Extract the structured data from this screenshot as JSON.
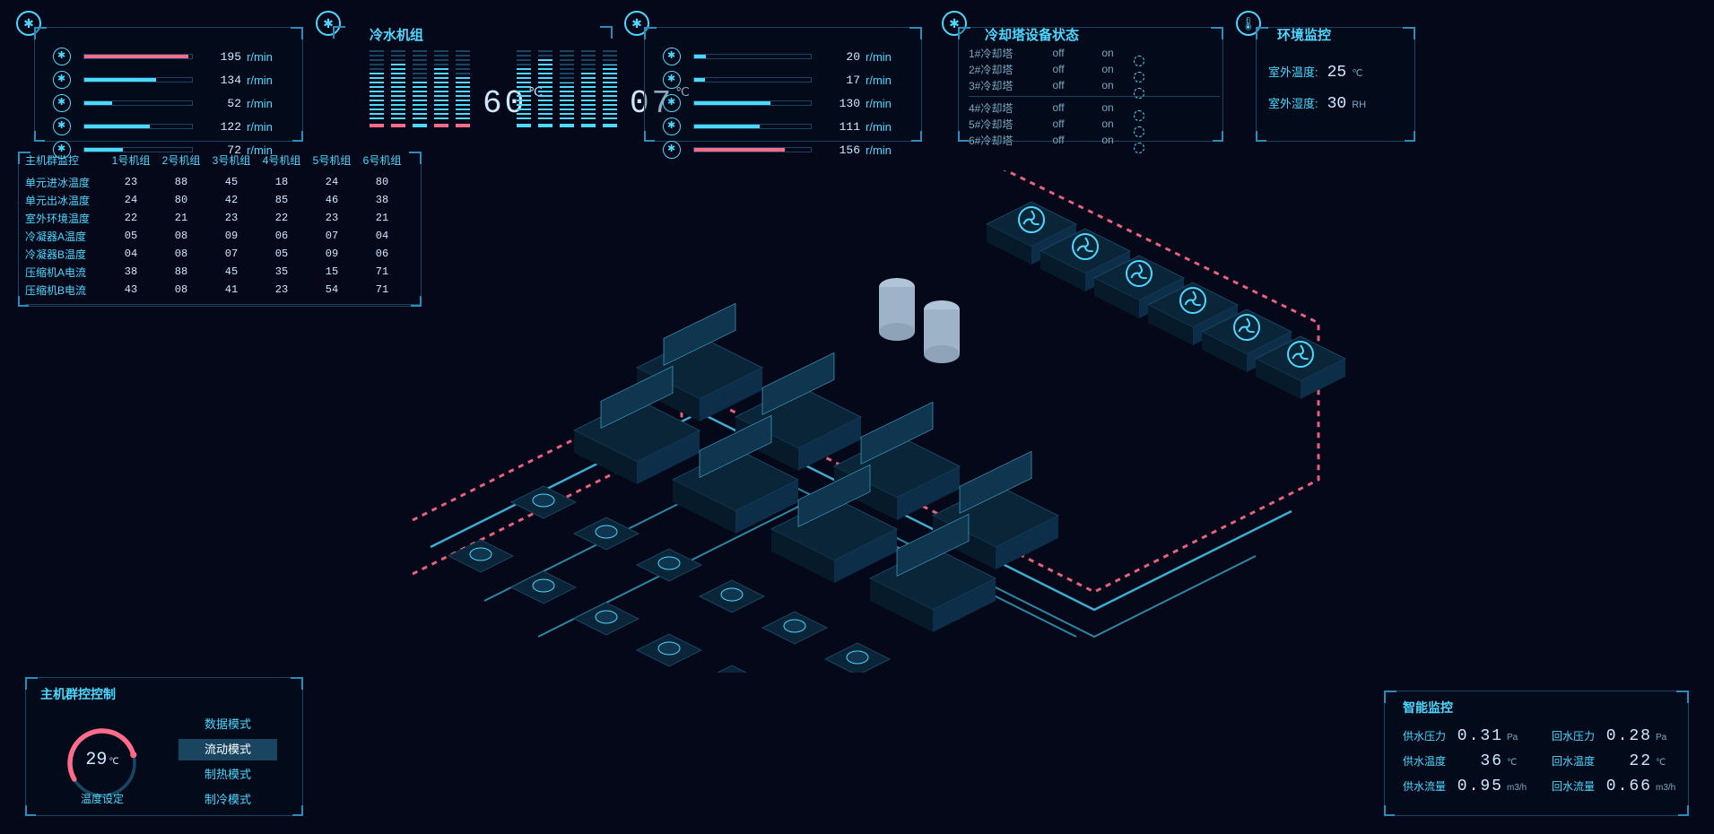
{
  "colors": {
    "bg": "#040818",
    "line": "#1a4560",
    "accent": "#4dd8ff",
    "accent2": "#2a8bbd",
    "text": "#cfe8ff",
    "muted": "#7ba8c0",
    "red": "#ff6b8a"
  },
  "top_left_fans": {
    "unit_label": "r/min",
    "max": 200,
    "rows": [
      {
        "value": 195,
        "pct": 97,
        "color": "red"
      },
      {
        "value": 134,
        "pct": 67,
        "color": "blue"
      },
      {
        "value": 52,
        "pct": 26,
        "color": "blue"
      },
      {
        "value": 122,
        "pct": 61,
        "color": "blue"
      },
      {
        "value": 72,
        "pct": 36,
        "color": "blue"
      }
    ]
  },
  "chiller": {
    "title": "冷水机组",
    "group_a": {
      "temp": "60",
      "temp_unit": "℃",
      "bars": [
        {
          "fill_pct": 70,
          "fill_color": "#4dd8ff",
          "base_color": "#ff6b8a"
        },
        {
          "fill_pct": 85,
          "fill_color": "#4dd8ff",
          "base_color": "#ff6b8a"
        },
        {
          "fill_pct": 60,
          "fill_color": "#4dd8ff",
          "base_color": "#4dd8ff"
        },
        {
          "fill_pct": 78,
          "fill_color": "#4dd8ff",
          "base_color": "#ff6b8a"
        },
        {
          "fill_pct": 65,
          "fill_color": "#4dd8ff",
          "base_color": "#ff6b8a"
        }
      ]
    },
    "group_b": {
      "temp": "07",
      "temp_unit": "℃",
      "bars": [
        {
          "fill_pct": 75,
          "fill_color": "#4dd8ff",
          "base_color": "#4dd8ff"
        },
        {
          "fill_pct": 88,
          "fill_color": "#4dd8ff",
          "base_color": "#4dd8ff"
        },
        {
          "fill_pct": 55,
          "fill_color": "#4dd8ff",
          "base_color": "#4dd8ff"
        },
        {
          "fill_pct": 70,
          "fill_color": "#4dd8ff",
          "base_color": "#4dd8ff"
        },
        {
          "fill_pct": 80,
          "fill_color": "#4dd8ff",
          "base_color": "#4dd8ff"
        }
      ]
    }
  },
  "top_right_fans": {
    "unit_label": "r/min",
    "max": 200,
    "rows": [
      {
        "value": 20,
        "pct": 10,
        "color": "blue"
      },
      {
        "value": 17,
        "pct": 9,
        "color": "blue"
      },
      {
        "value": 130,
        "pct": 65,
        "color": "blue"
      },
      {
        "value": 111,
        "pct": 56,
        "color": "blue"
      },
      {
        "value": 156,
        "pct": 78,
        "color": "red"
      }
    ]
  },
  "tower": {
    "title": "冷却塔设备状态",
    "rows": [
      {
        "name": "1#冷却塔",
        "state_off": "off",
        "state_on": "on"
      },
      {
        "name": "2#冷却塔",
        "state_off": "off",
        "state_on": "on"
      },
      {
        "name": "3#冷却塔",
        "state_off": "off",
        "state_on": "on"
      },
      {
        "name": "4#冷却塔",
        "state_off": "off",
        "state_on": "on"
      },
      {
        "name": "5#冷却塔",
        "state_off": "off",
        "state_on": "on"
      },
      {
        "name": "6#冷却塔",
        "state_off": "off",
        "state_on": "on"
      }
    ]
  },
  "env": {
    "title": "环境监控",
    "rows": [
      {
        "label": "室外温度:",
        "value": "25",
        "unit": "℃"
      },
      {
        "label": "室外湿度:",
        "value": "30",
        "unit": "RH"
      }
    ]
  },
  "host_table": {
    "header0": "主机群监控",
    "headers": [
      "1号机组",
      "2号机组",
      "3号机组",
      "4号机组",
      "5号机组",
      "6号机组"
    ],
    "rows": [
      {
        "label": "单元进冰温度",
        "cells": [
          "23",
          "88",
          "45",
          "18",
          "24",
          "80"
        ]
      },
      {
        "label": "单元出冰温度",
        "cells": [
          "24",
          "80",
          "42",
          "85",
          "46",
          "38"
        ]
      },
      {
        "label": "室外环境温度",
        "cells": [
          "22",
          "21",
          "23",
          "22",
          "23",
          "21"
        ]
      },
      {
        "label": "冷凝器A温度",
        "cells": [
          "05",
          "08",
          "09",
          "06",
          "07",
          "04"
        ]
      },
      {
        "label": "冷凝器B温度",
        "cells": [
          "04",
          "08",
          "07",
          "05",
          "09",
          "06"
        ]
      },
      {
        "label": "压缩机A电流",
        "cells": [
          "38",
          "88",
          "45",
          "35",
          "15",
          "71"
        ]
      },
      {
        "label": "压缩机B电流",
        "cells": [
          "43",
          "08",
          "41",
          "23",
          "54",
          "71"
        ]
      }
    ]
  },
  "ctrl": {
    "title": "主机群控控制",
    "gauge": {
      "value": "29",
      "unit": "℃",
      "label": "温度设定",
      "arc_pct": 65,
      "arc_color": "#ff6b8a"
    },
    "modes": [
      {
        "label": "数据模式",
        "active": false
      },
      {
        "label": "流动模式",
        "active": true
      },
      {
        "label": "制热模式",
        "active": false
      },
      {
        "label": "制冷模式",
        "active": false
      }
    ]
  },
  "smart": {
    "title": "智能监控",
    "items": [
      {
        "label": "供水压力",
        "value": "0.31",
        "unit": "Pa"
      },
      {
        "label": "回水压力",
        "value": "0.28",
        "unit": "Pa"
      },
      {
        "label": "供水温度",
        "value": "36",
        "unit": "℃"
      },
      {
        "label": "回水温度",
        "value": "22",
        "unit": "℃"
      },
      {
        "label": "供水流量",
        "value": "0.95",
        "unit": "m3/h"
      },
      {
        "label": "回水流量",
        "value": "0.66",
        "unit": "m3/h"
      }
    ]
  },
  "iso_diagram": {
    "type": "isometric-piping",
    "pipe_hot_color": "#ff6b8a",
    "pipe_cold_color": "#4dd8ff",
    "equipment_color": "#1a4560",
    "equipment_accent": "#4dd8ff",
    "tank_color": "#b0c4d8",
    "cooling_towers": 6,
    "chillers_row_a": 4,
    "chillers_row_b": 4,
    "pumps_row_a": 6,
    "pumps_row_b": 6,
    "tanks": 2
  }
}
